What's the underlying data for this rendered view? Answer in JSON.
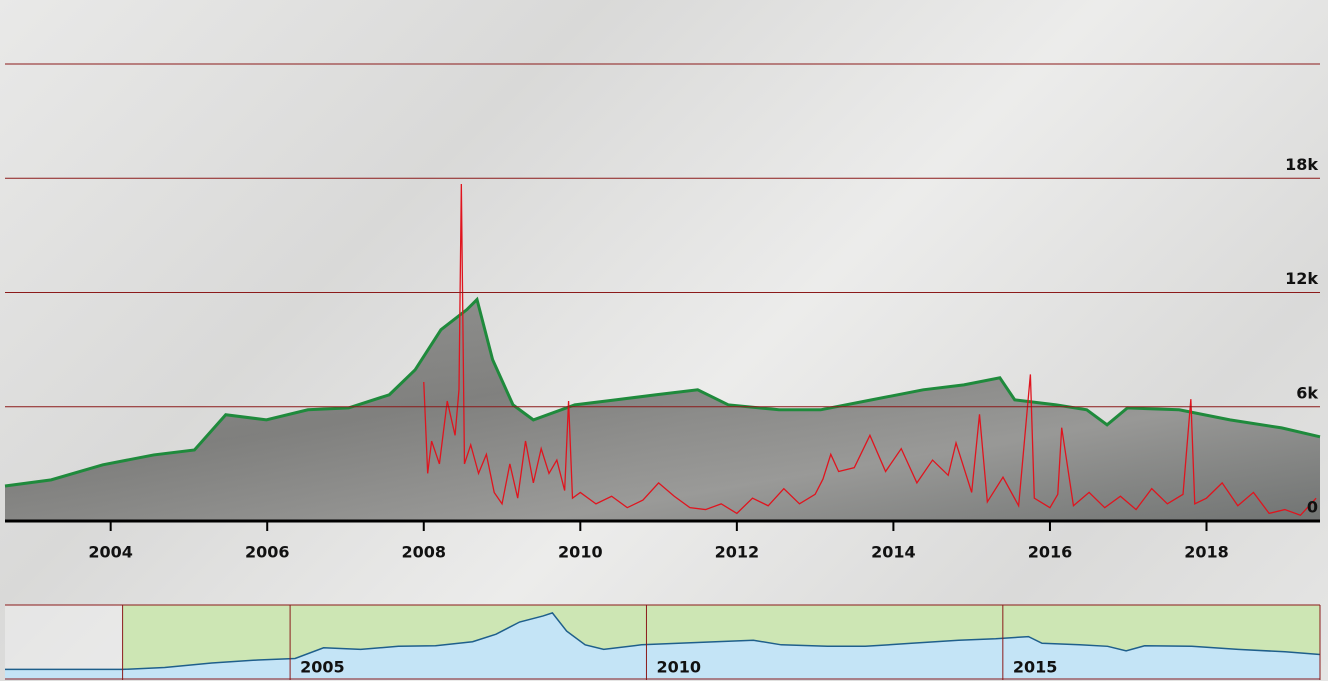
{
  "chart_data": [
    {
      "type": "area",
      "xlim": [
        2002.65,
        2019.45
      ],
      "ylim": [
        0,
        24000
      ],
      "xticks": [
        2004,
        2006,
        2008,
        2010,
        2012,
        2014,
        2016,
        2018
      ],
      "yticks": [
        0,
        {
          "value": 6000,
          "label": "6k"
        },
        {
          "value": 12000,
          "label": "12k"
        },
        {
          "value": 18000,
          "label": "18k"
        }
      ],
      "grid": true,
      "series": [
        {
          "type": "area",
          "color": "#1f8a3c",
          "x": [
            2002.65,
            2003.24,
            2003.9,
            2004.55,
            2005.07,
            2005.47,
            2005.99,
            2006.52,
            2007.04,
            2007.56,
            2007.89,
            2008.22,
            2008.55,
            2008.68,
            2008.88,
            2009.14,
            2009.4,
            2009.93,
            2010.45,
            2010.97,
            2011.5,
            2011.89,
            2012.54,
            2013.07,
            2013.72,
            2014.38,
            2014.9,
            2015.36,
            2015.55,
            2016.08,
            2016.47,
            2016.73,
            2016.99,
            2017.65,
            2018.3,
            2018.96,
            2019.45
          ],
          "values": [
            1840,
            2160,
            2950,
            3470,
            3730,
            5580,
            5310,
            5840,
            5940,
            6630,
            7940,
            10050,
            11100,
            11630,
            8470,
            6100,
            5310,
            6100,
            6360,
            6630,
            6890,
            6100,
            5840,
            5840,
            6360,
            6890,
            7150,
            7520,
            6360,
            6100,
            5840,
            5050,
            5940,
            5840,
            5310,
            4890,
            4420
          ]
        },
        {
          "type": "line",
          "color": "#e0141e",
          "x": [
            2008.0,
            2008.05,
            2008.1,
            2008.2,
            2008.3,
            2008.4,
            2008.45,
            2008.48,
            2008.52,
            2008.6,
            2008.7,
            2008.8,
            2008.9,
            2009.0,
            2009.1,
            2009.2,
            2009.3,
            2009.4,
            2009.5,
            2009.6,
            2009.7,
            2009.8,
            2009.85,
            2009.9,
            2010.0,
            2010.2,
            2010.4,
            2010.6,
            2010.8,
            2011.0,
            2011.2,
            2011.4,
            2011.6,
            2011.8,
            2012.0,
            2012.2,
            2012.4,
            2012.6,
            2012.8,
            2013.0,
            2013.1,
            2013.2,
            2013.3,
            2013.5,
            2013.7,
            2013.9,
            2014.1,
            2014.3,
            2014.5,
            2014.7,
            2014.8,
            2015.0,
            2015.1,
            2015.2,
            2015.4,
            2015.6,
            2015.75,
            2015.8,
            2016.0,
            2016.1,
            2016.15,
            2016.3,
            2016.5,
            2016.7,
            2016.9,
            2017.1,
            2017.3,
            2017.5,
            2017.7,
            2017.8,
            2017.85,
            2018.0,
            2018.2,
            2018.4,
            2018.6,
            2018.8,
            2019.0,
            2019.2,
            2019.4
          ],
          "values": [
            7300,
            2500,
            4200,
            3000,
            6300,
            4500,
            6900,
            17700,
            3000,
            4000,
            2500,
            3500,
            1500,
            900,
            3000,
            1200,
            4200,
            2000,
            3800,
            2500,
            3200,
            1600,
            6300,
            1200,
            1500,
            900,
            1300,
            700,
            1100,
            2000,
            1300,
            700,
            600,
            900,
            400,
            1200,
            800,
            1700,
            900,
            1400,
            2200,
            3500,
            2600,
            2800,
            4500,
            2600,
            3800,
            2000,
            3200,
            2400,
            4100,
            1500,
            5600,
            1000,
            2300,
            800,
            7700,
            1200,
            700,
            1400,
            4900,
            800,
            1500,
            700,
            1300,
            600,
            1700,
            900,
            1400,
            6400,
            900,
            1200,
            2000,
            800,
            1500,
            400,
            600,
            300,
            1200
          ]
        }
      ]
    },
    {
      "type": "navigator",
      "xlim": [
        2001.0,
        2019.45
      ],
      "ylim": [
        0,
        13000
      ],
      "xticks": [
        2005,
        2010,
        2015
      ],
      "color": "#1f5f8b"
    }
  ]
}
